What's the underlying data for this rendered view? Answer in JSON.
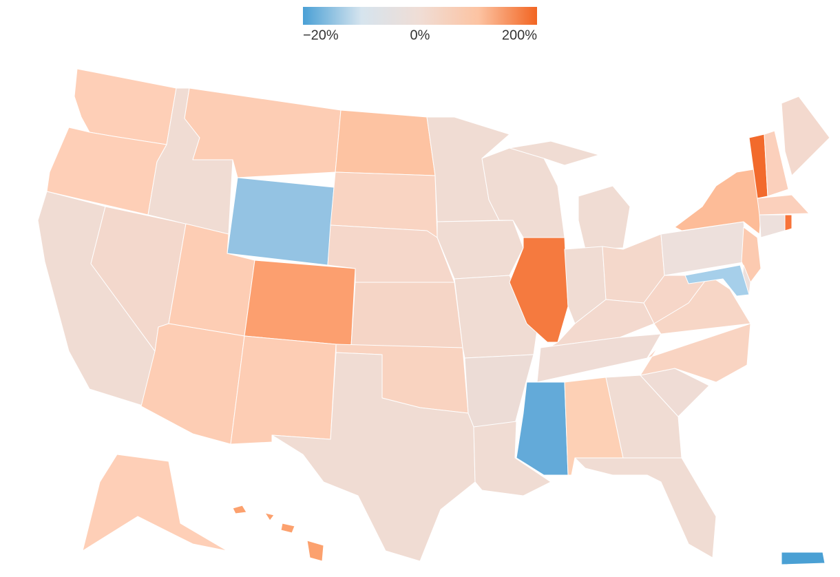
{
  "legend": {
    "colors": [
      "#4aa0d5",
      "#d6e4ee",
      "#f0ddd5",
      "#fcc3a2",
      "#f26522"
    ],
    "ticks": [
      {
        "value": -20,
        "label": "−20%"
      },
      {
        "value": 0,
        "label": "0%"
      },
      {
        "value": 200,
        "label": "200%"
      }
    ]
  },
  "regions": [
    {
      "color": "#fecfb7"
    },
    {
      "color": "#fecfb7"
    },
    {
      "color": "#f0dcd3"
    },
    {
      "color": "#f3d8cc"
    },
    {
      "color": "#f0dcd3"
    },
    {
      "color": "#fdcdb4"
    },
    {
      "color": "#94c3e3"
    },
    {
      "color": "#fdcdb4"
    },
    {
      "color": "#fc9f6f"
    },
    {
      "color": "#fdcdb4"
    },
    {
      "color": "#fdcdb4"
    },
    {
      "color": "#fdc3a2"
    },
    {
      "color": "#f9d4c2"
    },
    {
      "color": "#f5d7ca"
    },
    {
      "color": "#f5d5c6"
    },
    {
      "color": "#f9d3c0"
    },
    {
      "color": "#f0dcd3"
    },
    {
      "color": "#f0dcd3"
    },
    {
      "color": "#f0dcd3"
    },
    {
      "color": "#f0dcd3"
    },
    {
      "color": "#ecdcd6"
    },
    {
      "color": "#f0dcd3"
    },
    {
      "color": "#f0dcd3"
    },
    {
      "color": "#f57a3f"
    },
    {
      "color": "#f0dcd3"
    },
    {
      "color": "#f0dcd3"
    },
    {
      "color": "#f4d8cb"
    },
    {
      "color": "#f3d9ce"
    },
    {
      "color": "#efdcd5"
    },
    {
      "color": "#63aad9"
    },
    {
      "color": "#fdd0b5"
    },
    {
      "color": "#f0dcd3"
    },
    {
      "color": "#f0dcd3"
    },
    {
      "color": "#efdcd5"
    },
    {
      "color": "#f9d4c2"
    },
    {
      "color": "#f7d6c6"
    },
    {
      "color": "#f6d6c8"
    },
    {
      "color": "#ede0dc"
    },
    {
      "color": "#fdbc98"
    },
    {
      "color": "#f26a2c"
    },
    {
      "color": "#fbd0bc"
    },
    {
      "color": "#f3d9ce"
    },
    {
      "color": "#fbd0bc"
    },
    {
      "color": "#ede0dc"
    },
    {
      "color": "#f7743a"
    },
    {
      "color": "#fccab0"
    },
    {
      "color": "#ede0dc"
    },
    {
      "color": "#a6cfea"
    },
    {
      "color": "#fecfb7"
    },
    {
      "color": "#fca16e"
    },
    {
      "color": "#4aa0d4"
    }
  ]
}
